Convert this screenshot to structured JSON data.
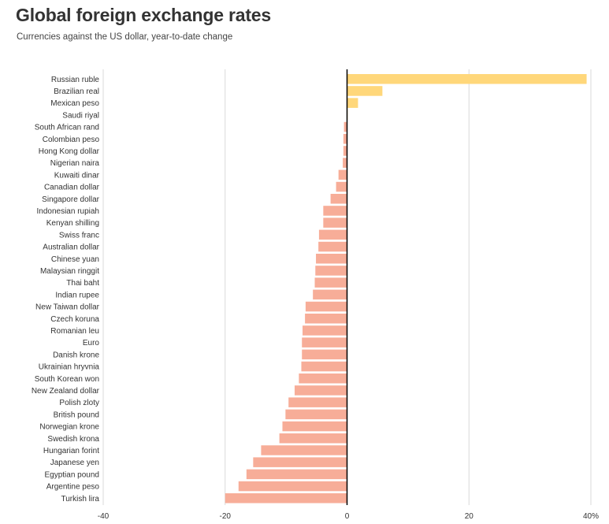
{
  "chart_data": {
    "type": "bar",
    "orientation": "horizontal",
    "title": "Global foreign exchange rates",
    "subtitle": "Currencies against the US dollar, year-to-date change",
    "xlabel": "",
    "ylabel": "",
    "xlim": [
      -40,
      40
    ],
    "xticks": [
      -40,
      -20,
      0,
      20,
      40
    ],
    "xtick_labels": [
      "-40",
      "-20",
      "0",
      "20",
      "40%"
    ],
    "grid": true,
    "colors": {
      "positive": "#ffd77a",
      "negative": "#f7ad98",
      "zero_line": "#000000",
      "grid": "#d9d9d9"
    },
    "categories": [
      "Russian ruble",
      "Brazilian real",
      "Mexican peso",
      "Saudi riyal",
      "South African rand",
      "Colombian peso",
      "Hong Kong dollar",
      "Nigerian naira",
      "Kuwaiti dinar",
      "Canadian dollar",
      "Singapore dollar",
      "Indonesian rupiah",
      "Kenyan shilling",
      "Swiss franc",
      "Australian dollar",
      "Chinese yuan",
      "Malaysian ringgit",
      "Thai baht",
      "Indian rupee",
      "New Taiwan dollar",
      "Czech koruna",
      "Romanian leu",
      "Euro",
      "Danish krone",
      "Ukrainian hryvnia",
      "South Korean won",
      "New Zealand dollar",
      "Polish zloty",
      "British pound",
      "Norwegian krone",
      "Swedish krona",
      "Hungarian forint",
      "Japanese yen",
      "Egyptian pound",
      "Argentine peso",
      "Turkish lira"
    ],
    "values": [
      39.3,
      5.8,
      1.8,
      0.1,
      -0.5,
      -0.6,
      -0.6,
      -0.7,
      -1.4,
      -1.8,
      -2.7,
      -3.9,
      -3.9,
      -4.6,
      -4.7,
      -5.1,
      -5.2,
      -5.3,
      -5.6,
      -6.8,
      -6.9,
      -7.3,
      -7.4,
      -7.4,
      -7.5,
      -7.9,
      -8.6,
      -9.6,
      -10.1,
      -10.6,
      -11.1,
      -14.1,
      -15.4,
      -16.5,
      -17.8,
      -20.0
    ]
  }
}
